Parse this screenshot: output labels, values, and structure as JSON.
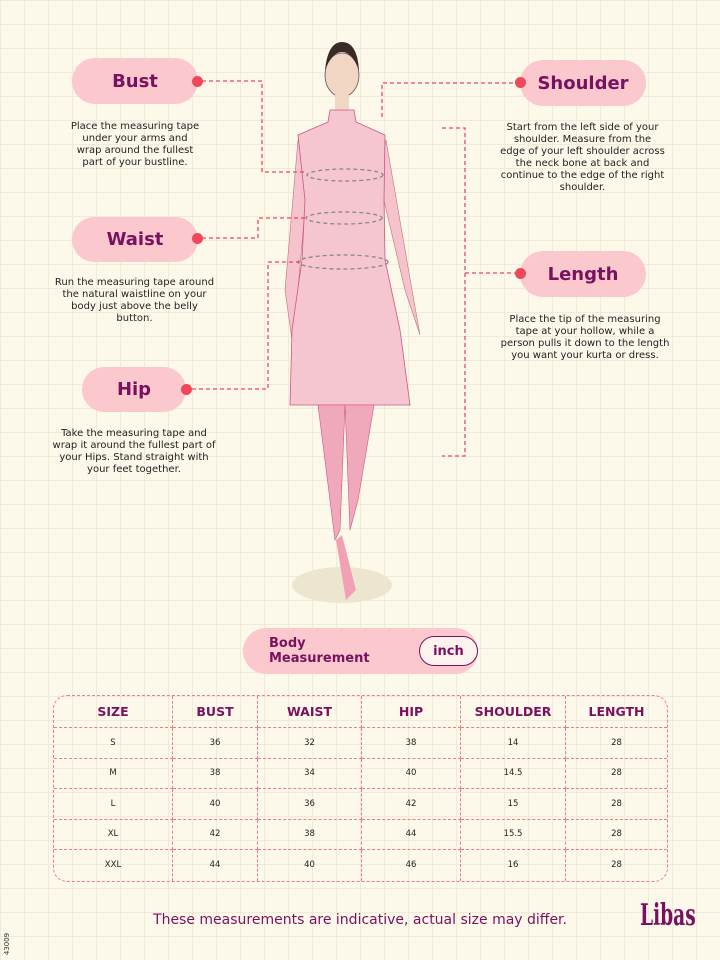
{
  "callouts": {
    "bust": {
      "label": "Bust",
      "desc": "Place the measuring tape under your arms and wrap around the fullest part of your bustline."
    },
    "waist": {
      "label": "Waist",
      "desc": "Run the measuring tape around the natural waistline on your body just above the belly button."
    },
    "hip": {
      "label": "Hip",
      "desc": "Take the measuring tape and wrap it around the fullest part of your Hips. Stand straight with your feet together."
    },
    "shoulder": {
      "label": "Shoulder",
      "desc": "Start from the left side of your shoulder. Measure from the edge of your left shoulder across the neck bone at back and continue to the edge of the right shoulder."
    },
    "length": {
      "label": "Length",
      "desc": "Place the tip of the measuring tape at your hollow, while a person pulls it down to the length you want your kurta or dress."
    }
  },
  "unit_selector": {
    "label": "Body Measurement",
    "unit": "inch"
  },
  "table": {
    "headers": [
      "SIZE",
      "BUST",
      "WAIST",
      "HIP",
      "SHOULDER",
      "LENGTH"
    ],
    "rows": [
      [
        "S",
        "36",
        "32",
        "38",
        "14",
        "28"
      ],
      [
        "M",
        "38",
        "34",
        "40",
        "14.5",
        "28"
      ],
      [
        "L",
        "40",
        "36",
        "42",
        "15",
        "28"
      ],
      [
        "XL",
        "42",
        "38",
        "44",
        "15.5",
        "28"
      ],
      [
        "XXL",
        "44",
        "40",
        "46",
        "16",
        "28"
      ]
    ]
  },
  "footer": "These measurements are indicative, actual size may differ.",
  "brand": "Libas",
  "code": "43009",
  "colors": {
    "accent": "#7a1060",
    "pill": "#fbc9cd",
    "dash": "#f0475c"
  }
}
